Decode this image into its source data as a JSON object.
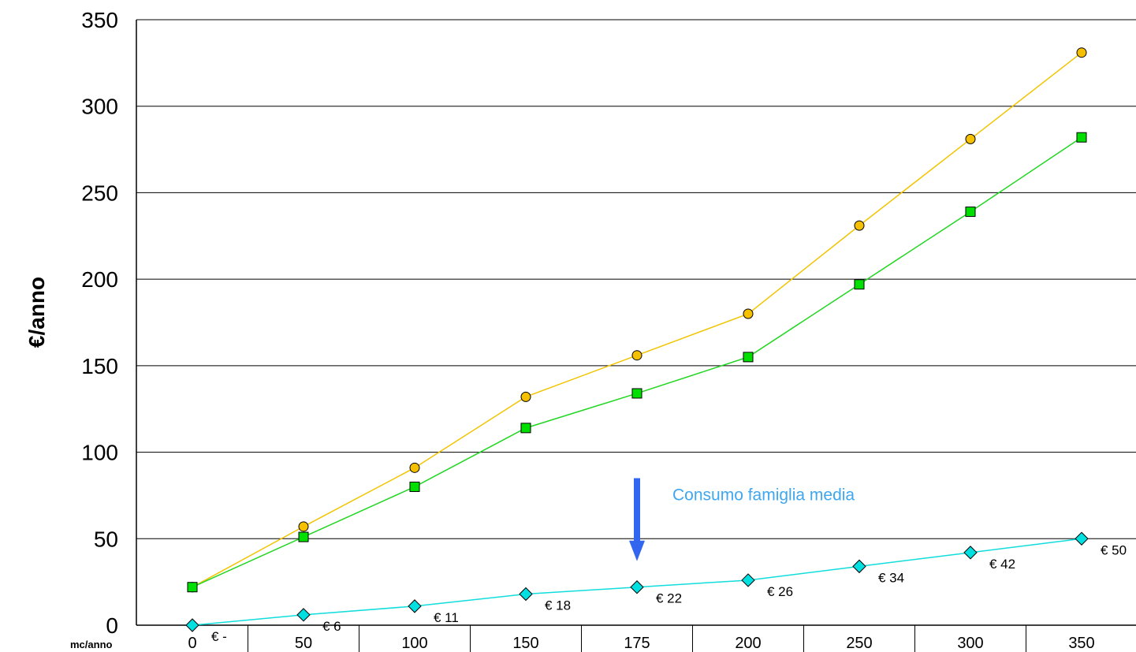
{
  "chart_data": {
    "type": "line",
    "categories": [
      "0",
      "50",
      "100",
      "150",
      "175",
      "200",
      "250",
      "300",
      "350"
    ],
    "ylabel": "€/anno",
    "xunit_label": "mc/anno",
    "ylim": [
      0,
      350
    ],
    "yticks": [
      0,
      50,
      100,
      150,
      200,
      250,
      300,
      350
    ],
    "grid": "horizontal",
    "series": [
      {
        "color": "#f5c000",
        "line_color": "#f2c400",
        "marker": "circle",
        "values": [
          22,
          57,
          91,
          132,
          156,
          180,
          231,
          281,
          331
        ]
      },
      {
        "color": "#00e000",
        "line_color": "#22d622",
        "marker": "square",
        "values": [
          22,
          51,
          80,
          114,
          134,
          155,
          197,
          239,
          282
        ]
      },
      {
        "color": "#00e0e0",
        "line_color": "#11dddd",
        "marker": "diamond",
        "values": [
          0,
          6,
          11,
          18,
          22,
          26,
          34,
          42,
          50
        ],
        "data_labels": [
          "€ -",
          "€ 6",
          "€ 11",
          "€ 18",
          "€ 22",
          "€ 26",
          "€ 34",
          "€ 42",
          "€ 50"
        ]
      }
    ],
    "annotation": {
      "text": "Consumo famiglia media",
      "color": "#3fa6f0",
      "arrow_color": "#3366ee",
      "at_category": "175",
      "arrow_from": 85,
      "arrow_to": 37
    }
  }
}
